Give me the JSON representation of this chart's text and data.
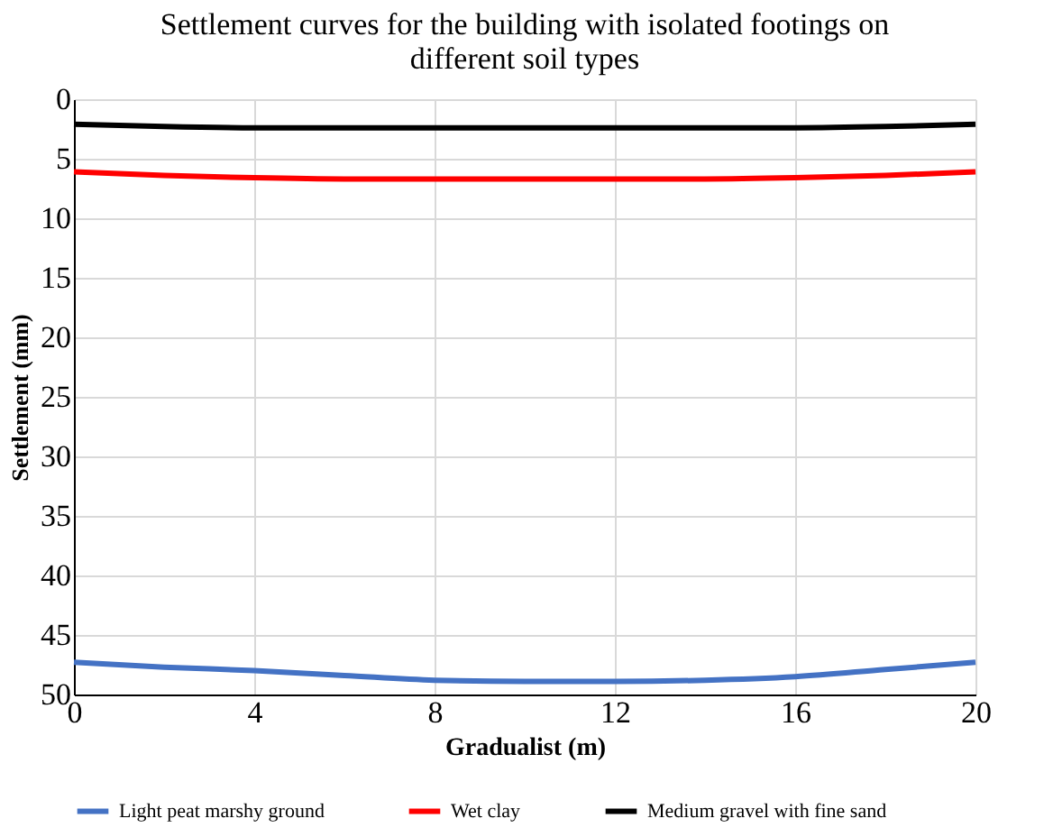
{
  "chart_data": {
    "type": "line",
    "title": "Settlement curves for the building with isolated footings on different soil types",
    "xlabel": "Gradualist (m)",
    "ylabel": "Settlement (mm)",
    "x": [
      0,
      2,
      4,
      6,
      8,
      10,
      12,
      14,
      16,
      18,
      20
    ],
    "xlim": [
      0,
      20
    ],
    "xticks": [
      0,
      4,
      8,
      12,
      16,
      20
    ],
    "ylim": [
      50,
      0
    ],
    "yticks": [
      0,
      5,
      10,
      15,
      20,
      25,
      30,
      35,
      40,
      45,
      50
    ],
    "grid": true,
    "legend": "bottom",
    "marker": "none",
    "line_style": "solid",
    "series": [
      {
        "name": "Light peat marshy ground",
        "color": "#4472c4",
        "values": [
          47.3,
          47.7,
          48.0,
          48.4,
          48.8,
          48.9,
          48.9,
          48.8,
          48.5,
          47.9,
          47.3
        ]
      },
      {
        "name": "Wet clay",
        "color": "#ff0000",
        "values": [
          6.1,
          6.4,
          6.6,
          6.7,
          6.7,
          6.7,
          6.7,
          6.7,
          6.6,
          6.4,
          6.1
        ]
      },
      {
        "name": "Medium gravel with fine sand",
        "color": "#000000",
        "values": [
          2.1,
          2.3,
          2.4,
          2.4,
          2.4,
          2.4,
          2.4,
          2.4,
          2.4,
          2.3,
          2.1
        ]
      }
    ]
  }
}
